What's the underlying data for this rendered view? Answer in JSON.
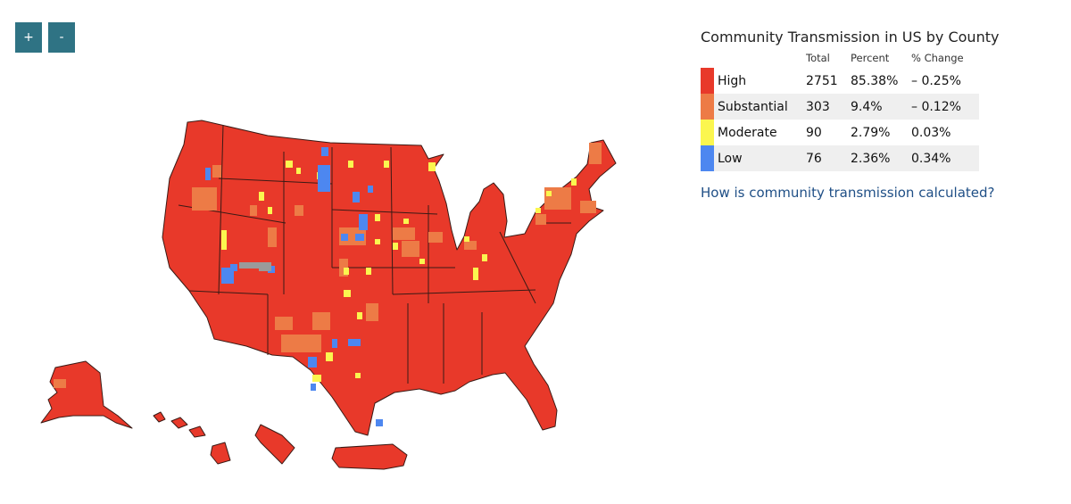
{
  "zoom": {
    "in_label": "+",
    "out_label": "-"
  },
  "map": {
    "state_fill": "#e8392a",
    "border_color": "#3a1a15",
    "gray_fill": "#9a9a9a"
  },
  "legend": {
    "title": "Community Transmission in US by County",
    "headers": {
      "total": "Total",
      "percent": "Percent",
      "change": "% Change"
    },
    "rows": [
      {
        "label": "High",
        "total": "2751",
        "percent": "85.38%",
        "change": "– 0.25%",
        "color": "#e8392a"
      },
      {
        "label": "Substantial",
        "total": "303",
        "percent": "9.4%",
        "change": "– 0.12%",
        "color": "#ed7b46"
      },
      {
        "label": "Moderate",
        "total": "90",
        "percent": "2.79%",
        "change": "0.03%",
        "color": "#fbf64f"
      },
      {
        "label": "Low",
        "total": "76",
        "percent": "2.36%",
        "change": "0.34%",
        "color": "#4d87f0"
      }
    ],
    "link_text": "How is community transmission calculated?",
    "link_color": "#1f4f86"
  }
}
